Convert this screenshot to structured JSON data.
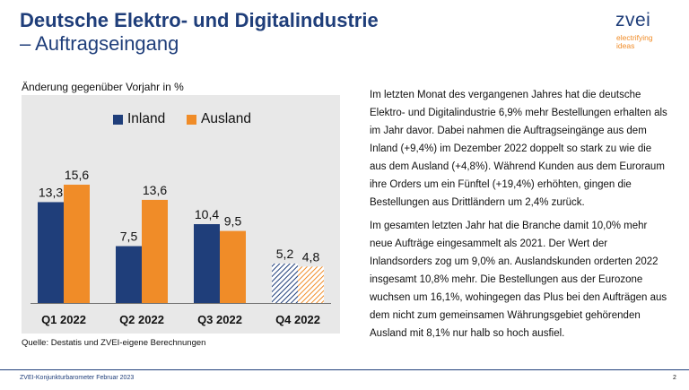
{
  "header": {
    "title": "Deutsche Elektro- und Digitalindustrie",
    "subtitle": "– Auftragseingang"
  },
  "logo": {
    "word": "zvei",
    "tagline_line1": "electrifying",
    "tagline_line2": "ideas"
  },
  "colors": {
    "title": "#1f3e7a",
    "inland": "#1f3e7a",
    "ausland": "#f08c28",
    "panel": "#e8e8e8"
  },
  "chart_caption": "Änderung gegenüber Vorjahr in %",
  "chart_data": {
    "type": "bar",
    "categories": [
      "Q1 2022",
      "Q2 2022",
      "Q3 2022",
      "Q4 2022"
    ],
    "series": [
      {
        "name": "Inland",
        "values": [
          13.3,
          7.5,
          10.4,
          5.2
        ],
        "labels": [
          "13,3",
          "7,5",
          "10,4",
          "5,2"
        ],
        "color": "#1f3e7a"
      },
      {
        "name": "Ausland",
        "values": [
          15.6,
          13.6,
          9.5,
          4.8
        ],
        "labels": [
          "15,6",
          "13,6",
          "9,5",
          "4,8"
        ],
        "color": "#f08c28"
      }
    ],
    "hatched_categories": [
      "Q4 2022"
    ],
    "ylim": [
      0,
      20
    ],
    "grid": false,
    "legend": "top"
  },
  "source": "Quelle: Destatis und ZVEI-eigene Berechnungen",
  "text": {
    "paragraph1": "Im letzten Monat des vergangenen Jahres hat die deutsche Elektro- und Digitalindustrie 6,9% mehr Bestellungen erhalten als im Jahr davor. Dabei nahmen die Auftragseingänge aus dem Inland (+9,4%) im Dezember 2022 doppelt so stark zu wie die aus dem Ausland (+4,8%). Während Kunden aus dem Euroraum ihre Orders um ein Fünftel (+19,4%) erhöhten, gingen die Bestellungen aus Drittländern um 2,4% zurück.",
    "paragraph2": "Im gesamten letzten Jahr hat die Branche damit 10,0% mehr neue Aufträge eingesammelt als 2021. Der Wert der Inlandsorders zog um 9,0% an. Auslandskunden orderten 2022 insgesamt 10,8% mehr. Die Bestellungen aus der Eurozone wuchsen um 16,1%, wohingegen das Plus bei den Aufträgen aus dem nicht zum gemeinsamen Währungsgebiet gehörenden Ausland mit 8,1% nur halb so hoch ausfiel."
  },
  "footer": {
    "left": "ZVEI-Konjunkturbarometer Februar 2023",
    "page": "2"
  }
}
